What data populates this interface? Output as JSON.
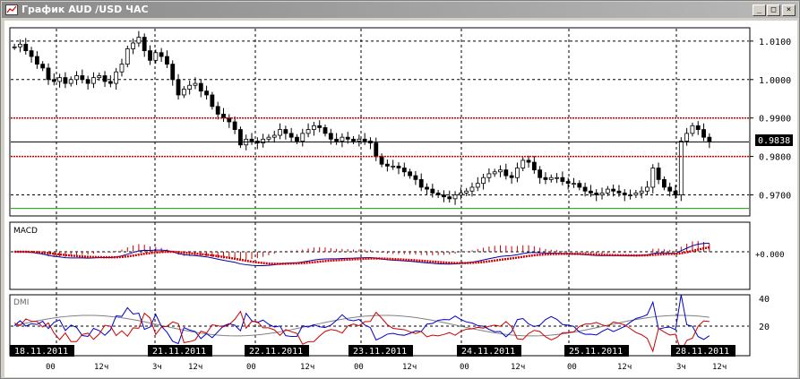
{
  "window": {
    "title": "График AUD /USD  ЧАС",
    "minimize_label": "_",
    "maximize_label": "□",
    "close_label": "×"
  },
  "price_panel": {
    "y_ticks": [
      "1.0100",
      "1.0000",
      "0.9900",
      "0.9800",
      "0.9700"
    ],
    "current_price": "0.9838",
    "colors": {
      "resistance": "#cc0000",
      "support": "#00aa00",
      "current": "#000000"
    }
  },
  "macd_panel": {
    "label": "MACD",
    "zero_tick": "+0.000",
    "colors": {
      "macd_line": "#0000aa",
      "signal": "#cc0000",
      "histogram": "#cc0000"
    }
  },
  "dmi_panel": {
    "label": "DMI",
    "y_ticks": [
      "40",
      "20"
    ],
    "colors": {
      "plus_di": "#0000cc",
      "minus_di": "#cc0000",
      "adx": "#808080"
    }
  },
  "time_axis": {
    "dates": [
      "18.11.2011",
      "21.11.2011",
      "22.11.2011",
      "23.11.2011",
      "24.11.2011",
      "25.11.2011",
      "28.11.2011"
    ],
    "hours": [
      "00",
      "12ч",
      "3ч",
      "12ч",
      "00",
      "12ч",
      "00",
      "12ч",
      "00",
      "12ч",
      "00",
      "12ч",
      "3ч",
      "12ч"
    ]
  },
  "chart_data": {
    "type": "candlestick",
    "ylim": [
      0.965,
      1.013
    ],
    "close_series": [
      1.0085,
      1.0092,
      1.0075,
      1.006,
      1.004,
      1.003,
      1.0,
      0.9995,
      1.0005,
      0.999,
      1.0,
      1.001,
      1.0,
      0.999,
      1.0005,
      1.001,
      0.9995,
      0.999,
      1.002,
      1.004,
      1.008,
      1.0095,
      1.011,
      1.0075,
      1.005,
      1.007,
      1.006,
      1.004,
      1.0,
      0.996,
      0.9975,
      0.9985,
      0.999,
      0.997,
      0.996,
      0.993,
      0.991,
      0.99,
      0.989,
      0.987,
      0.983,
      0.9845,
      0.984,
      0.9835,
      0.9845,
      0.985,
      0.9855,
      0.987,
      0.986,
      0.985,
      0.984,
      0.986,
      0.987,
      0.988,
      0.9875,
      0.986,
      0.9845,
      0.984,
      0.985,
      0.9845,
      0.984,
      0.9845,
      0.984,
      0.9835,
      0.98,
      0.978,
      0.9775,
      0.9775,
      0.977,
      0.976,
      0.975,
      0.974,
      0.972,
      0.9715,
      0.9705,
      0.97,
      0.9695,
      0.969,
      0.97,
      0.9705,
      0.971,
      0.972,
      0.973,
      0.9745,
      0.9755,
      0.976,
      0.9765,
      0.975,
      0.9745,
      0.977,
      0.979,
      0.9785,
      0.9765,
      0.9745,
      0.974,
      0.9745,
      0.9745,
      0.9735,
      0.973,
      0.973,
      0.972,
      0.971,
      0.9705,
      0.97,
      0.9705,
      0.9715,
      0.971,
      0.9705,
      0.97,
      0.97,
      0.9705,
      0.971,
      0.972,
      0.977,
      0.974,
      0.972,
      0.971,
      0.97,
      0.984,
      0.986,
      0.988,
      0.987,
      0.985,
      0.9838
    ]
  }
}
